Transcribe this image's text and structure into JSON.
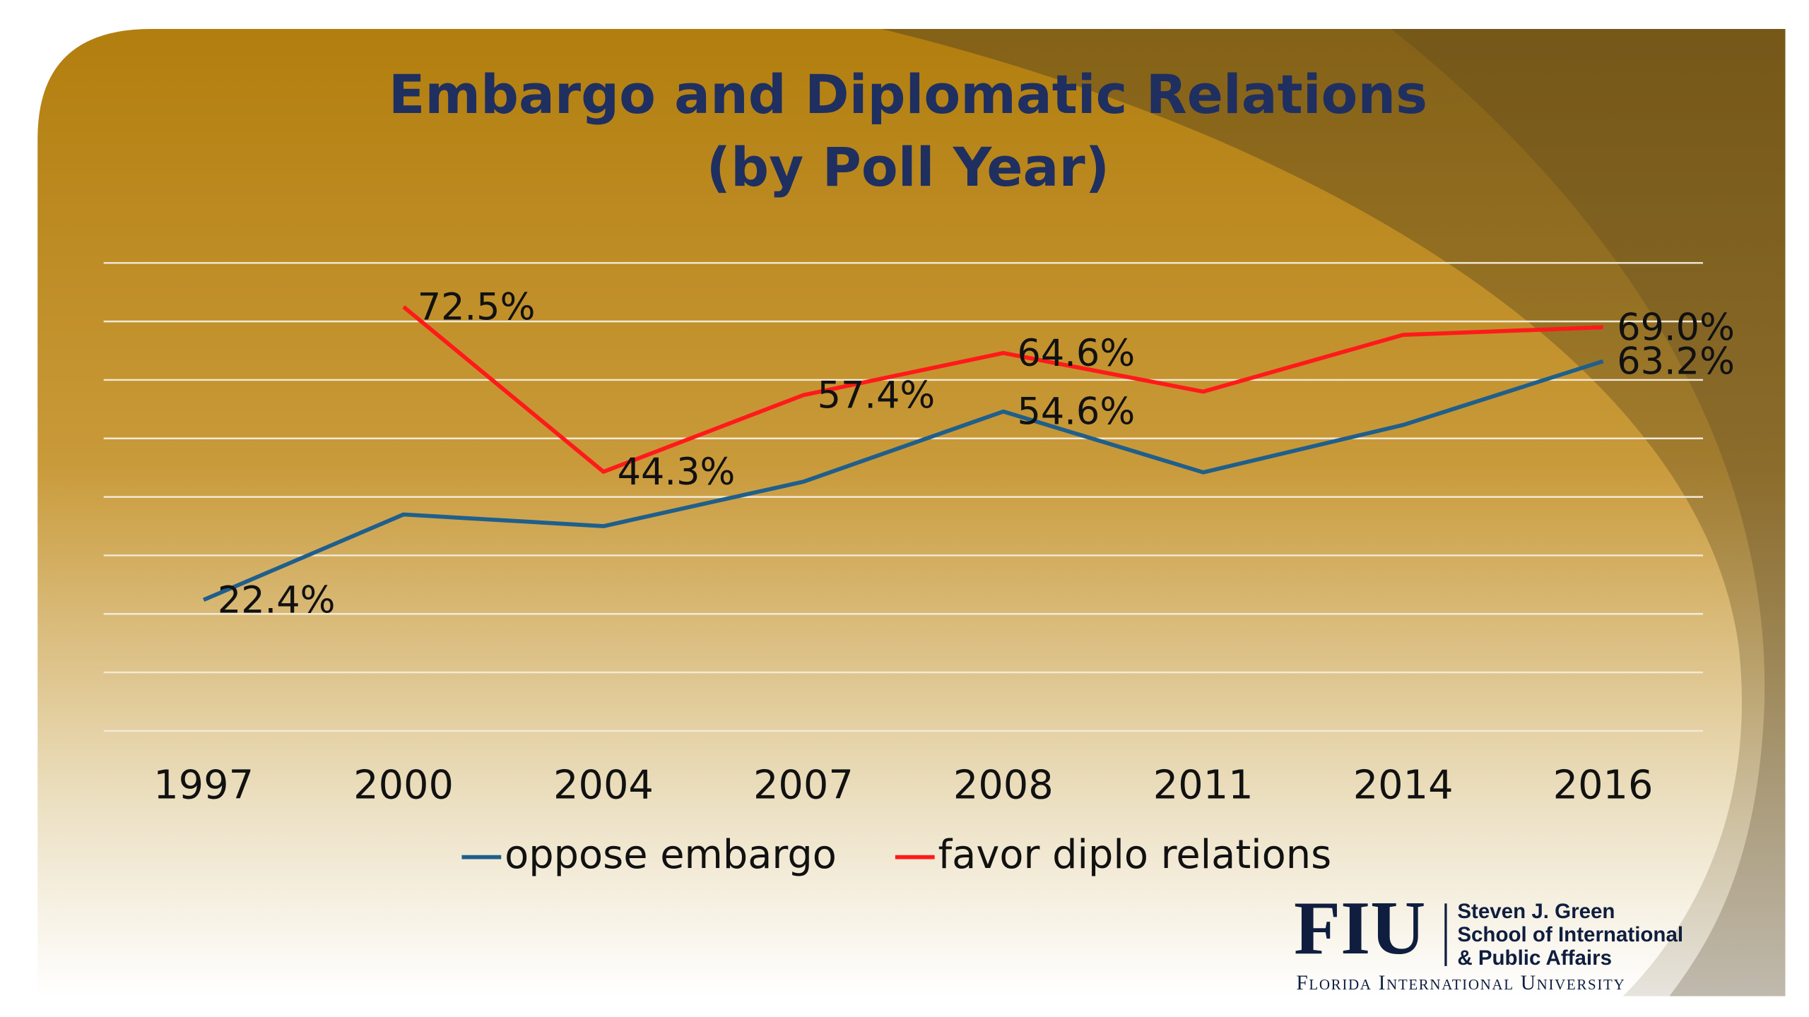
{
  "chart_data": {
    "type": "line",
    "title": "Embargo and Diplomatic Relations",
    "subtitle": "(by Poll Year)",
    "categories": [
      "1997",
      "2000",
      "2004",
      "2007",
      "2008",
      "2011",
      "2014",
      "2016"
    ],
    "series": [
      {
        "name": "oppose embargo",
        "color": "#1f5f8b",
        "values": [
          22.4,
          37.0,
          35.0,
          42.6,
          54.6,
          44.2,
          52.3,
          63.2
        ],
        "value_labels": [
          "22.4%",
          null,
          null,
          null,
          "54.6%",
          null,
          null,
          "63.2%"
        ]
      },
      {
        "name": "favor diplo relations",
        "color": "#ff1a1a",
        "values": [
          null,
          72.5,
          44.3,
          57.4,
          64.6,
          58.0,
          67.7,
          69.0
        ],
        "value_labels": [
          null,
          "72.5%",
          "44.3%",
          "57.4%",
          "64.6%",
          null,
          null,
          "69.0%"
        ]
      }
    ],
    "ylim": [
      0,
      80
    ],
    "yticks": [
      0,
      10,
      20,
      30,
      40,
      50,
      60,
      70,
      80
    ],
    "grid": true
  },
  "logo": {
    "mark": "FIU",
    "lines": [
      "Steven J. Green",
      "School of International",
      "& Public Affairs"
    ],
    "university": "Florida International University"
  }
}
